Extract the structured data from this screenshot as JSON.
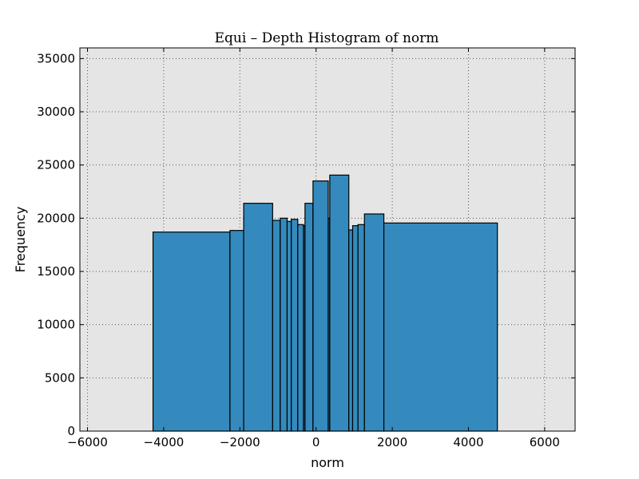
{
  "chart_data": {
    "type": "bar",
    "title": "Equi – Depth Histogram of norm",
    "xlabel": "norm",
    "ylabel": "Frequency",
    "xlim": [
      -6200,
      6800
    ],
    "ylim": [
      0,
      36000
    ],
    "xticks": [
      -6000,
      -4000,
      -2000,
      0,
      2000,
      4000,
      6000
    ],
    "xtick_labels": [
      "−6000",
      "−4000",
      "−2000",
      "0",
      "2000",
      "4000",
      "6000"
    ],
    "yticks": [
      0,
      5000,
      10000,
      15000,
      20000,
      25000,
      30000,
      35000
    ],
    "ytick_labels": [
      "0",
      "5000",
      "10000",
      "15000",
      "20000",
      "25000",
      "30000",
      "35000"
    ],
    "grid": true,
    "bar_color": "#348abd",
    "edge_color": "#000000",
    "background_color": "#e5e5e5",
    "bins": [
      {
        "x0": -4280,
        "x1": -2260,
        "value": 18700
      },
      {
        "x0": -2260,
        "x1": -1900,
        "value": 18850
      },
      {
        "x0": -1900,
        "x1": -1140,
        "value": 21400
      },
      {
        "x0": -1140,
        "x1": -940,
        "value": 19800
      },
      {
        "x0": -940,
        "x1": -760,
        "value": 20000
      },
      {
        "x0": -760,
        "x1": -650,
        "value": 19700
      },
      {
        "x0": -650,
        "x1": -480,
        "value": 19900
      },
      {
        "x0": -480,
        "x1": -330,
        "value": 19400
      },
      {
        "x0": -330,
        "x1": -290,
        "value": 19300
      },
      {
        "x0": -290,
        "x1": -80,
        "value": 21400
      },
      {
        "x0": -80,
        "x1": 320,
        "value": 23500
      },
      {
        "x0": 320,
        "x1": 360,
        "value": 20000
      },
      {
        "x0": 360,
        "x1": 860,
        "value": 24050
      },
      {
        "x0": 860,
        "x1": 960,
        "value": 18900
      },
      {
        "x0": 960,
        "x1": 1100,
        "value": 19300
      },
      {
        "x0": 1100,
        "x1": 1270,
        "value": 19400
      },
      {
        "x0": 1270,
        "x1": 1780,
        "value": 20400
      },
      {
        "x0": 1780,
        "x1": 4760,
        "value": 19550
      }
    ]
  }
}
